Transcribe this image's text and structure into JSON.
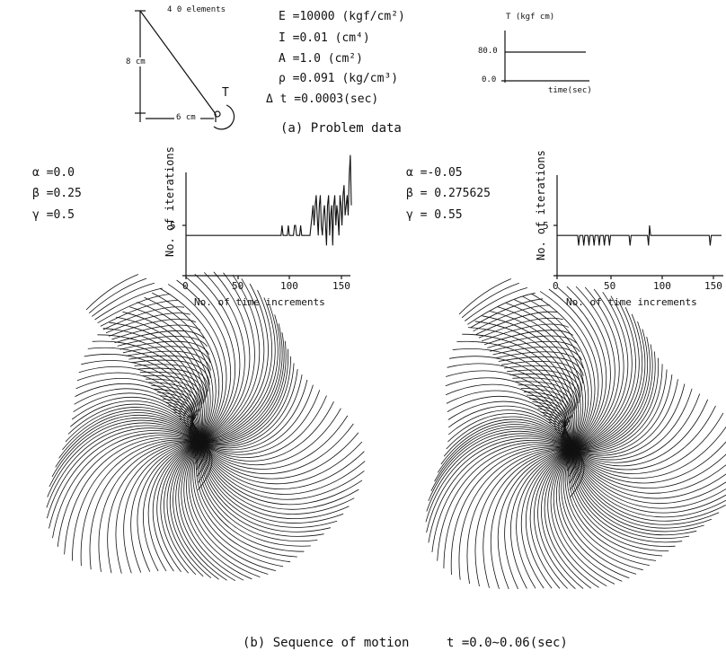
{
  "sketch": {
    "elements_label": "4 0 elements",
    "height_label": "8 cm",
    "width_label": "6 cm",
    "torque_label": "T"
  },
  "params": [
    "E =10000  (kgf/cm²)",
    "I =0.01   (cm⁴)",
    "A =1.0    (cm²)",
    "ρ =0.091  (kg/cm³)",
    "Δ t =0.0003(sec)"
  ],
  "torque_chart": {
    "ylabel": "T (kgf cm)",
    "xlabel": "time(sec)",
    "tick_high": "80.0",
    "tick_low": "0.0"
  },
  "caption_a": "(a) Problem data",
  "left_case": {
    "alpha": "α =0.0",
    "beta": "β =0.25",
    "gamma": "γ =0.5"
  },
  "right_case": {
    "alpha": "α =-0.05",
    "beta": "β = 0.275625",
    "gamma": "γ = 0.55"
  },
  "caption_b": "(b) Sequence of motion",
  "caption_t": "t =0.0∼0.06(sec)",
  "chart_data": [
    {
      "type": "line",
      "title": "",
      "xlabel": "No. of time increments",
      "ylabel": "No. of iterations",
      "xticks": [
        "0",
        "50",
        "100",
        "150"
      ],
      "yticks": [
        "5"
      ],
      "xlim": [
        0,
        160
      ],
      "ylim": [
        0,
        10
      ],
      "x": [
        0,
        92,
        93,
        94,
        98,
        99,
        100,
        104,
        105,
        106,
        107,
        110,
        111,
        112,
        120,
        122,
        123,
        124,
        125,
        126,
        127,
        128,
        129,
        130,
        131,
        132,
        133,
        134,
        135,
        136,
        137,
        138,
        139,
        140,
        141,
        142,
        143,
        144,
        145,
        146,
        147,
        148,
        149,
        150,
        151,
        152,
        153,
        154,
        155,
        156,
        157,
        158,
        159,
        160
      ],
      "values": [
        4,
        4,
        5,
        4,
        4,
        5,
        4,
        4,
        5,
        5,
        4,
        4,
        5,
        4,
        4,
        6,
        7,
        5,
        7,
        8,
        6,
        4,
        7,
        8,
        5,
        4,
        6,
        7,
        5,
        3,
        7,
        8,
        4,
        6,
        7,
        3,
        7,
        8,
        5,
        7,
        6,
        4,
        8,
        7,
        5,
        8,
        9,
        6,
        7,
        8,
        6,
        10,
        12,
        7
      ]
    },
    {
      "type": "line",
      "title": "",
      "xlabel": "No. of time increments",
      "ylabel": "No. of iterations",
      "xticks": [
        "0",
        "50",
        "100",
        "150"
      ],
      "yticks": [
        "5"
      ],
      "xlim": [
        0,
        160
      ],
      "ylim": [
        0,
        10
      ],
      "x": [
        0,
        20,
        21,
        22,
        25,
        26,
        27,
        30,
        31,
        32,
        35,
        36,
        37,
        40,
        41,
        42,
        45,
        46,
        47,
        50,
        51,
        52,
        70,
        71,
        72,
        88,
        89,
        90,
        91,
        92,
        93,
        148,
        149,
        150,
        160
      ],
      "values": [
        4,
        4,
        3,
        4,
        4,
        3,
        4,
        4,
        3,
        4,
        4,
        3,
        4,
        4,
        3,
        4,
        4,
        3,
        4,
        4,
        3,
        4,
        4,
        3,
        4,
        4,
        3,
        5,
        4,
        4,
        4,
        4,
        3,
        4,
        4
      ]
    }
  ]
}
